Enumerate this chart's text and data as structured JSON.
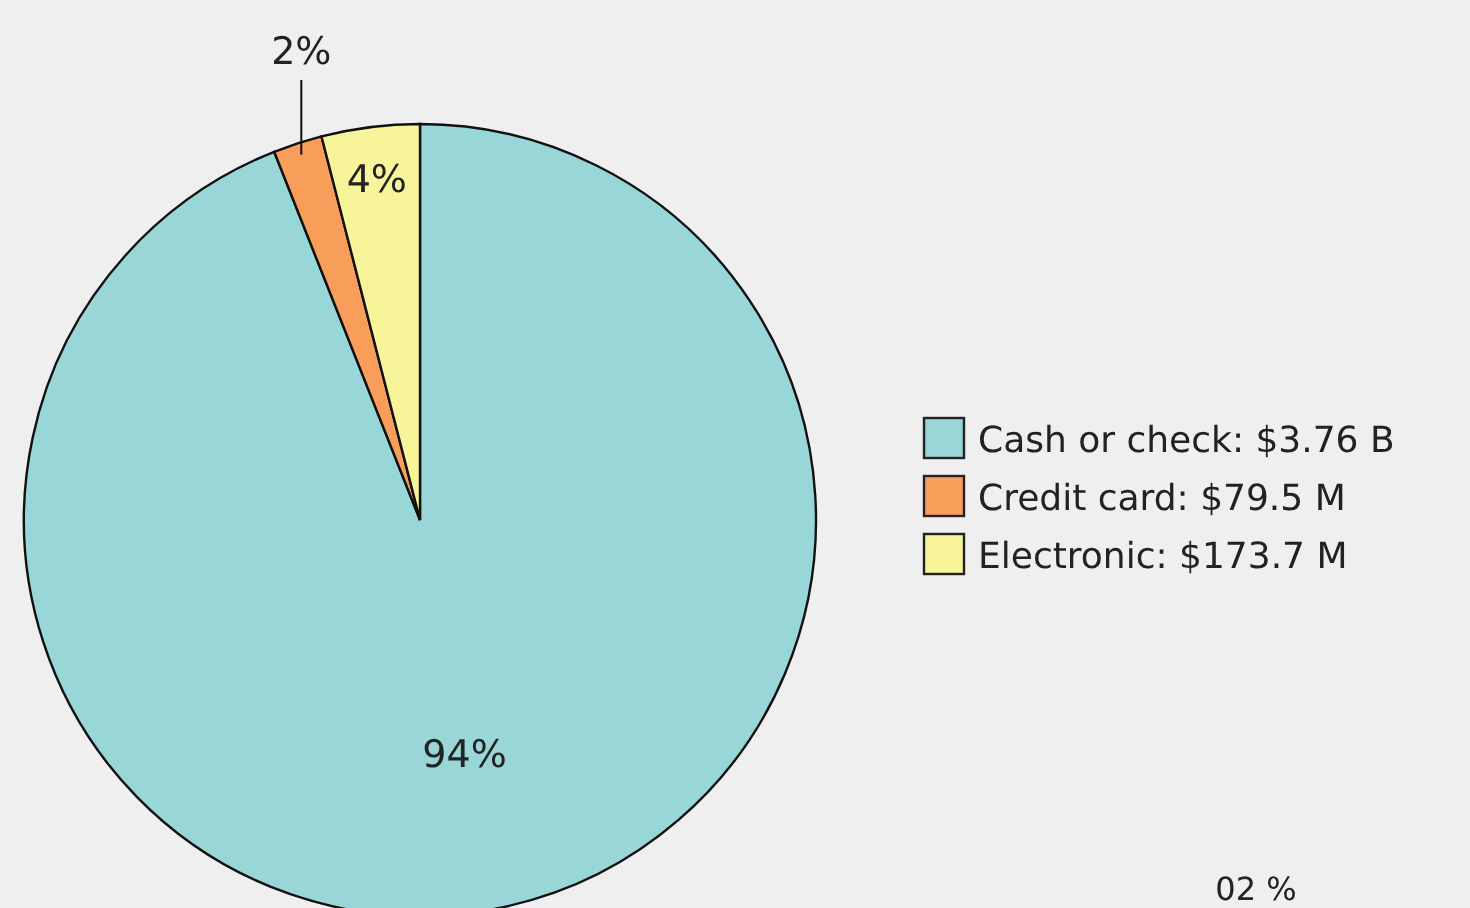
{
  "chart_data": {
    "type": "pie",
    "categories": [
      "Cash or check: $3.76 B",
      "Credit card: $79.5 M",
      "Electronic: $173.7 M"
    ],
    "values": [
      94,
      2,
      4
    ],
    "colors": [
      "#98d6d8",
      "#f89d5a",
      "#f8f49a"
    ],
    "value_labels": [
      "94%",
      "2%",
      "4%"
    ],
    "legend": "right",
    "annotations": [
      "02 %"
    ]
  }
}
